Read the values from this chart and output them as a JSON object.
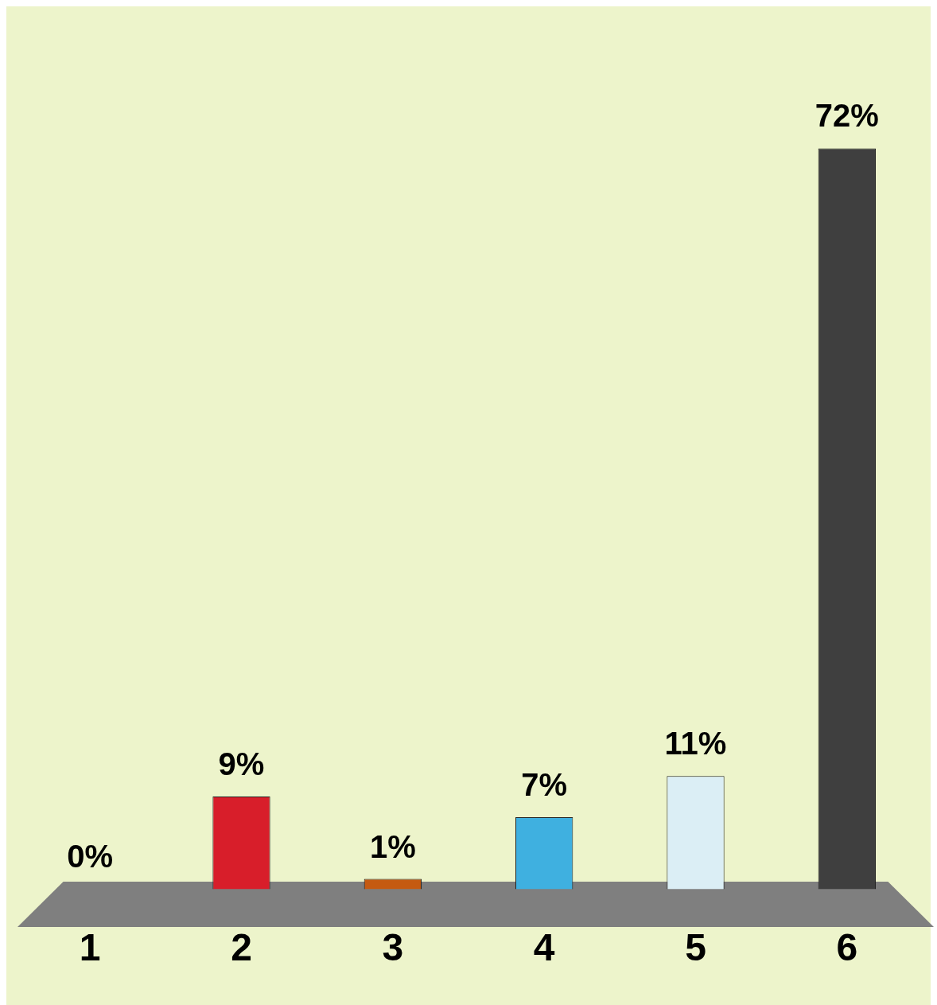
{
  "chart_data": {
    "type": "bar",
    "categories": [
      "1",
      "2",
      "3",
      "4",
      "5",
      "6"
    ],
    "values": [
      0,
      9,
      1,
      7,
      11,
      72
    ],
    "colors": [
      "#1f7f99",
      "#d81e2a",
      "#c55a11",
      "#3fb0e0",
      "#dbeef5",
      "#3f3f3f"
    ],
    "value_labels": [
      "0%",
      "9%",
      "1%",
      "7%",
      "11%",
      "72%"
    ],
    "grid": false,
    "legend": false
  }
}
